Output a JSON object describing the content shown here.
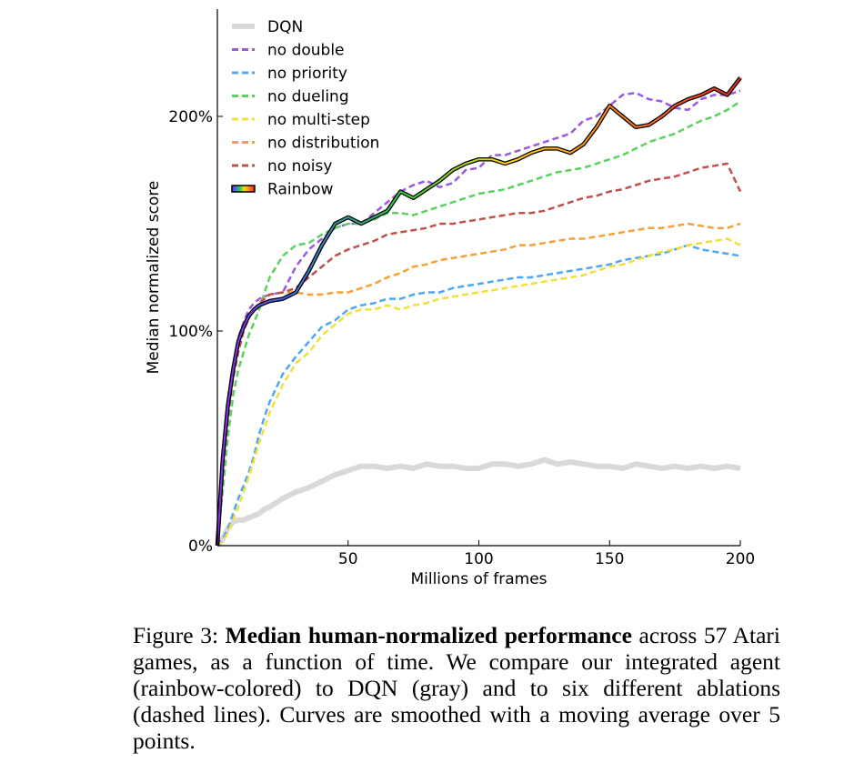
{
  "chart_data": {
    "type": "line",
    "xlabel": "Millions of frames",
    "ylabel": "Median normalized score",
    "xlim": [
      0,
      200
    ],
    "ylim": [
      0,
      250
    ],
    "xticks": [
      50,
      100,
      150,
      200
    ],
    "yticks": [
      0,
      100,
      200
    ],
    "ytick_labels": [
      "0%",
      "100%",
      "200%"
    ],
    "legend_position": "top-left",
    "x": [
      0,
      2,
      4,
      6,
      8,
      10,
      12,
      14,
      16,
      18,
      20,
      25,
      30,
      35,
      40,
      45,
      50,
      55,
      60,
      65,
      70,
      75,
      80,
      85,
      90,
      95,
      100,
      105,
      110,
      115,
      120,
      125,
      130,
      135,
      140,
      145,
      150,
      155,
      160,
      165,
      170,
      175,
      180,
      185,
      190,
      195,
      200
    ],
    "series": [
      {
        "name": "DQN",
        "color": "#d9d9d9",
        "style": "solid-thick",
        "values": [
          0,
          3,
          8,
          11,
          12,
          12,
          13,
          14,
          15,
          17,
          18,
          22,
          25,
          27,
          30,
          33,
          35,
          37,
          37,
          36,
          37,
          36,
          38,
          37,
          37,
          36,
          36,
          38,
          38,
          37,
          38,
          40,
          38,
          39,
          38,
          37,
          37,
          36,
          38,
          37,
          36,
          37,
          36,
          37,
          36,
          37,
          36
        ]
      },
      {
        "name": "no double",
        "color": "#9b59e0",
        "style": "dashed",
        "values": [
          0,
          28,
          58,
          82,
          97,
          104,
          110,
          113,
          115,
          116,
          117,
          118,
          130,
          138,
          143,
          148,
          150,
          150,
          155,
          160,
          165,
          168,
          170,
          167,
          169,
          175,
          176,
          182,
          182,
          184,
          186,
          188,
          190,
          192,
          198,
          200,
          205,
          210,
          211,
          208,
          207,
          204,
          203,
          208,
          210,
          210,
          212
        ]
      },
      {
        "name": "no priority",
        "color": "#4fa7f0",
        "style": "dashed",
        "values": [
          0,
          3,
          8,
          15,
          22,
          28,
          34,
          42,
          52,
          60,
          67,
          80,
          88,
          95,
          102,
          105,
          110,
          112,
          113,
          115,
          115,
          117,
          118,
          118,
          120,
          121,
          122,
          123,
          124,
          125,
          125,
          126,
          127,
          128,
          129,
          130,
          131,
          133,
          134,
          135,
          136,
          138,
          140,
          138,
          137,
          136,
          135
        ]
      },
      {
        "name": "no dueling",
        "color": "#5ad160",
        "style": "dashed",
        "values": [
          0,
          25,
          50,
          70,
          82,
          90,
          98,
          104,
          110,
          118,
          125,
          135,
          140,
          141,
          145,
          148,
          150,
          150,
          152,
          155,
          155,
          154,
          156,
          158,
          160,
          162,
          164,
          165,
          166,
          168,
          170,
          172,
          174,
          175,
          176,
          178,
          180,
          182,
          185,
          188,
          190,
          192,
          195,
          198,
          200,
          203,
          207
        ]
      },
      {
        "name": "no multi-step",
        "color": "#f2df3a",
        "style": "dashed",
        "values": [
          0,
          2,
          6,
          12,
          18,
          25,
          32,
          40,
          48,
          55,
          62,
          75,
          85,
          90,
          98,
          103,
          108,
          110,
          110,
          112,
          110,
          112,
          113,
          115,
          116,
          117,
          118,
          119,
          120,
          121,
          122,
          123,
          124,
          125,
          126,
          128,
          130,
          131,
          133,
          135,
          137,
          138,
          140,
          141,
          142,
          143,
          140
        ]
      },
      {
        "name": "no distribution",
        "color": "#f5a13a",
        "style": "dashed",
        "values": [
          0,
          38,
          62,
          80,
          92,
          100,
          106,
          110,
          113,
          115,
          117,
          118,
          118,
          117,
          117,
          118,
          118,
          120,
          122,
          125,
          127,
          130,
          131,
          133,
          134,
          135,
          136,
          137,
          138,
          140,
          140,
          141,
          142,
          143,
          143,
          144,
          145,
          146,
          147,
          148,
          148,
          149,
          150,
          149,
          148,
          148,
          150
        ]
      },
      {
        "name": "no noisy",
        "color": "#c0504d",
        "style": "dashed",
        "values": [
          0,
          35,
          60,
          78,
          90,
          100,
          106,
          110,
          113,
          115,
          117,
          118,
          120,
          125,
          130,
          135,
          138,
          140,
          142,
          145,
          146,
          147,
          148,
          150,
          150,
          151,
          152,
          153,
          154,
          155,
          155,
          156,
          158,
          160,
          162,
          163,
          165,
          166,
          168,
          170,
          171,
          172,
          174,
          176,
          177,
          178,
          165
        ]
      },
      {
        "name": "Rainbow",
        "color": "#000000",
        "style": "rainbow",
        "values": [
          0,
          40,
          65,
          82,
          95,
          102,
          107,
          110,
          112,
          113,
          114,
          115,
          118,
          128,
          140,
          150,
          153,
          150,
          153,
          156,
          165,
          162,
          166,
          170,
          175,
          178,
          180,
          180,
          178,
          180,
          183,
          185,
          185,
          183,
          187,
          195,
          205,
          200,
          195,
          196,
          200,
          205,
          208,
          210,
          213,
          210,
          218
        ]
      }
    ]
  },
  "caption": {
    "label": "Figure 3: ",
    "bold": "Median human-normalized performance",
    "rest": " across 57 Atari games, as a function of time. We compare our integrated agent (rainbow-colored) to DQN (gray) and to six different ablations (dashed lines). Curves are smoothed with a moving average over 5 points."
  }
}
